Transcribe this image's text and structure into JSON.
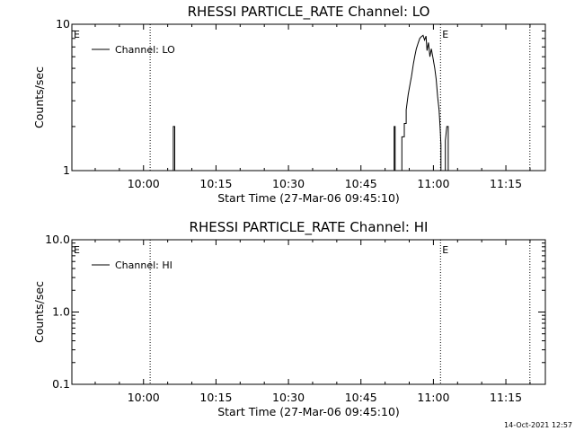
{
  "footer": {
    "timestamp": "14-Oct-2021 12:57"
  },
  "chart_data": [
    {
      "type": "line",
      "title": "RHESSI PARTICLE_RATE Channel: LO",
      "xlabel": "Start Time (27-Mar-06 09:45:10)",
      "ylabel": "Counts/sec",
      "x_unit": "minutes since 09:45:10",
      "xlim": [
        0,
        98
      ],
      "ylim": [
        1,
        10
      ],
      "yscale": "log",
      "x_ticks": [
        {
          "x": 14.83,
          "label": "10:00"
        },
        {
          "x": 29.83,
          "label": "10:15"
        },
        {
          "x": 44.83,
          "label": "10:30"
        },
        {
          "x": 59.83,
          "label": "10:45"
        },
        {
          "x": 74.83,
          "label": "11:00"
        },
        {
          "x": 89.83,
          "label": "11:15"
        }
      ],
      "y_ticks": [
        {
          "y": 1,
          "label": "1"
        },
        {
          "y": 10,
          "label": "10"
        }
      ],
      "minor_y": [
        2,
        3,
        4,
        5,
        6,
        7,
        8,
        9
      ],
      "events": [
        {
          "x": 16.2,
          "label": ""
        },
        {
          "x": 76.3,
          "label": ""
        },
        {
          "x": 94.8,
          "label": ""
        }
      ],
      "event_labels": [
        {
          "x": 0,
          "text": "E"
        },
        {
          "x": 76.3,
          "text": "E"
        }
      ],
      "legend": {
        "position": "top-left",
        "label": "Channel: LO"
      },
      "series": [
        {
          "name": "Channel: LO",
          "segments": [
            [
              [
                21.0,
                1
              ],
              [
                21.0,
                2
              ],
              [
                21.3,
                2
              ],
              [
                21.3,
                1
              ]
            ],
            [
              [
                66.7,
                1
              ],
              [
                66.7,
                2
              ],
              [
                66.9,
                2
              ],
              [
                66.9,
                1
              ]
            ],
            [
              [
                68.3,
                1
              ],
              [
                68.3,
                1.7
              ],
              [
                68.8,
                1.7
              ],
              [
                68.8,
                2.1
              ],
              [
                69.2,
                2.1
              ],
              [
                69.2,
                2.6
              ],
              [
                69.6,
                3.3
              ],
              [
                70.0,
                3.9
              ],
              [
                70.3,
                4.4
              ],
              [
                70.7,
                5.4
              ],
              [
                71.0,
                6.1
              ],
              [
                71.3,
                6.8
              ],
              [
                71.7,
                7.5
              ],
              [
                72.0,
                8.0
              ],
              [
                72.3,
                8.2
              ],
              [
                72.7,
                8.4
              ],
              [
                73.0,
                7.8
              ],
              [
                73.3,
                8.3
              ],
              [
                73.5,
                6.6
              ],
              [
                73.8,
                7.5
              ],
              [
                74.1,
                6.0
              ],
              [
                74.4,
                6.8
              ],
              [
                74.7,
                6.0
              ],
              [
                75.1,
                5.0
              ],
              [
                75.4,
                4.2
              ],
              [
                75.7,
                3.2
              ],
              [
                76.0,
                2.6
              ],
              [
                76.2,
                2.0
              ],
              [
                76.4,
                1.5
              ],
              [
                76.4,
                1
              ]
            ],
            [
              [
                77.3,
                1
              ],
              [
                77.3,
                1.6
              ],
              [
                77.6,
                2.0
              ],
              [
                77.9,
                2.0
              ],
              [
                77.9,
                1
              ]
            ]
          ]
        }
      ]
    },
    {
      "type": "line",
      "title": "RHESSI PARTICLE_RATE Channel: HI",
      "xlabel": "Start Time (27-Mar-06 09:45:10)",
      "ylabel": "Counts/sec",
      "x_unit": "minutes since 09:45:10",
      "xlim": [
        0,
        98
      ],
      "ylim": [
        0.1,
        10
      ],
      "yscale": "log",
      "x_ticks": [
        {
          "x": 14.83,
          "label": "10:00"
        },
        {
          "x": 29.83,
          "label": "10:15"
        },
        {
          "x": 44.83,
          "label": "10:30"
        },
        {
          "x": 59.83,
          "label": "10:45"
        },
        {
          "x": 74.83,
          "label": "11:00"
        },
        {
          "x": 89.83,
          "label": "11:15"
        }
      ],
      "y_ticks": [
        {
          "y": 0.1,
          "label": "0.1"
        },
        {
          "y": 1,
          "label": "1.0"
        },
        {
          "y": 10,
          "label": "10.0"
        }
      ],
      "minor_y": [
        0.2,
        0.3,
        0.4,
        0.5,
        0.6,
        0.7,
        0.8,
        0.9,
        2,
        3,
        4,
        5,
        6,
        7,
        8,
        9
      ],
      "events": [
        {
          "x": 16.2,
          "label": ""
        },
        {
          "x": 76.3,
          "label": ""
        },
        {
          "x": 94.8,
          "label": ""
        }
      ],
      "event_labels": [
        {
          "x": 0,
          "text": "E"
        },
        {
          "x": 76.3,
          "text": "E"
        }
      ],
      "legend": {
        "position": "top-left",
        "label": "Channel: HI"
      },
      "series": [
        {
          "name": "Channel: HI",
          "segments": []
        }
      ]
    }
  ]
}
